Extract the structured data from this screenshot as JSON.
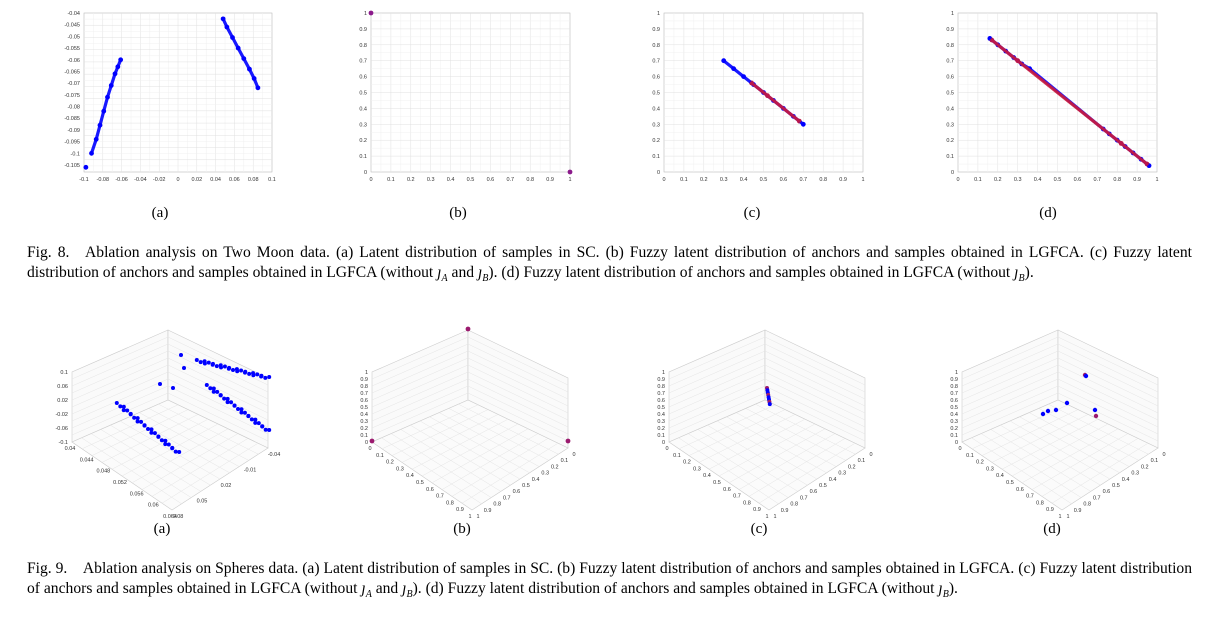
{
  "fig8": {
    "caption_parts": [
      "Fig. 8. Ablation analysis on Two Moon data. (a) Latent distribution of samples in SC. (b) Fuzzy latent distribution of anchors and samples obtained in LGFCA. (c) Fuzzy latent distribution of anchors and samples obtained in LGFCA (without ",
      " and ",
      "). (d) Fuzzy latent distribution of anchors and samples obtained in LGFCA (without ",
      ")."
    ],
    "symbols": {
      "jA": "𝚥",
      "A": "A",
      "B": "B"
    },
    "subfigures": [
      {
        "label": "(a)",
        "chart_data": {
          "type": "scatter",
          "xlim": [
            -0.1,
            0.1
          ],
          "xticks": [
            "-0.1",
            "-0.08",
            "-0.06",
            "-0.04",
            "-0.02",
            "0",
            "0.02",
            "0.04",
            "0.06",
            "0.08",
            "0.1"
          ],
          "ylim": [
            -0.108,
            -0.04
          ],
          "yticks": [
            "-0.04",
            "-0.045",
            "-0.05",
            "-0.055",
            "-0.06",
            "-0.065",
            "-0.07",
            "-0.075",
            "-0.08",
            "-0.085",
            "-0.09",
            "-0.095",
            "-0.1",
            "-0.105"
          ],
          "series": [
            {
              "color": "#0000ff",
              "x": [
                -0.092,
                -0.087,
                -0.083,
                -0.079,
                -0.075,
                -0.071,
                -0.067,
                -0.064,
                -0.061
              ],
              "y": [
                -0.1,
                -0.094,
                -0.088,
                -0.082,
                -0.076,
                -0.071,
                -0.066,
                -0.063,
                -0.06
              ]
            },
            {
              "color": "#0000ff",
              "x": [
                -0.098
              ],
              "y": [
                -0.106
              ]
            },
            {
              "color": "#0000ff",
              "x": [
                0.048,
                0.052,
                0.058,
                0.064,
                0.07,
                0.076,
                0.081,
                0.085
              ],
              "y": [
                -0.0425,
                -0.046,
                -0.0505,
                -0.055,
                -0.0595,
                -0.064,
                -0.068,
                -0.072
              ]
            }
          ]
        }
      },
      {
        "label": "(b)",
        "chart_data": {
          "type": "scatter",
          "xlim": [
            0,
            1
          ],
          "ylim": [
            0,
            1
          ],
          "xticks": [
            "0",
            "0.1",
            "0.2",
            "0.3",
            "0.4",
            "0.5",
            "0.6",
            "0.7",
            "0.8",
            "0.9",
            "1"
          ],
          "yticks": [
            "0",
            "0.1",
            "0.2",
            "0.3",
            "0.4",
            "0.5",
            "0.6",
            "0.7",
            "0.8",
            "0.9",
            "1"
          ],
          "series": [
            {
              "color": "#8b1a8b",
              "x": [
                0,
                1
              ],
              "y": [
                1,
                0
              ]
            }
          ]
        }
      },
      {
        "label": "(c)",
        "chart_data": {
          "type": "scatter",
          "xlim": [
            0,
            1
          ],
          "ylim": [
            0,
            1
          ],
          "xticks": [
            "0",
            "0.1",
            "0.2",
            "0.3",
            "0.4",
            "0.5",
            "0.6",
            "0.7",
            "0.8",
            "0.9",
            "1"
          ],
          "yticks": [
            "0",
            "0.1",
            "0.2",
            "0.3",
            "0.4",
            "0.5",
            "0.6",
            "0.7",
            "0.8",
            "0.9",
            "1"
          ],
          "series": [
            {
              "color": "#0000ff",
              "x": [
                0.3,
                0.35,
                0.4,
                0.45,
                0.5,
                0.55,
                0.6,
                0.65,
                0.7
              ],
              "y": [
                0.7,
                0.65,
                0.6,
                0.55,
                0.5,
                0.45,
                0.4,
                0.35,
                0.3
              ]
            },
            {
              "color": "#cc1a3a",
              "x": [
                0.44,
                0.52,
                0.68
              ],
              "y": [
                0.56,
                0.48,
                0.32
              ]
            }
          ]
        }
      },
      {
        "label": "(d)",
        "chart_data": {
          "type": "scatter",
          "xlim": [
            0,
            1
          ],
          "ylim": [
            0,
            1
          ],
          "xticks": [
            "0",
            "0.1",
            "0.2",
            "0.3",
            "0.4",
            "0.5",
            "0.6",
            "0.7",
            "0.8",
            "0.9",
            "1"
          ],
          "yticks": [
            "0",
            "0.1",
            "0.2",
            "0.3",
            "0.4",
            "0.5",
            "0.6",
            "0.7",
            "0.8",
            "0.9",
            "1"
          ],
          "series": [
            {
              "color": "#0000ff",
              "x": [
                0.16,
                0.2,
                0.24,
                0.28,
                0.32,
                0.36,
                0.73,
                0.76,
                0.8,
                0.84,
                0.88,
                0.92,
                0.96
              ],
              "y": [
                0.84,
                0.8,
                0.76,
                0.72,
                0.68,
                0.65,
                0.27,
                0.24,
                0.2,
                0.16,
                0.12,
                0.08,
                0.04
              ]
            },
            {
              "color": "#cc1a3a",
              "x": [
                0.17,
                0.3,
                0.82,
                0.95
              ],
              "y": [
                0.83,
                0.7,
                0.18,
                0.05
              ]
            }
          ]
        }
      }
    ]
  },
  "fig9": {
    "caption_parts": [
      "Fig. 9. Ablation analysis on Spheres data. (a) Latent distribution of samples in SC. (b) Fuzzy latent distribution of anchors and samples obtained in LGFCA. (c) Fuzzy latent distribution of anchors and samples obtained in LGFCA (without ",
      " and ",
      "). (d) Fuzzy latent distribution of anchors and samples obtained in LGFCA (without ",
      ")."
    ],
    "subfigures": [
      {
        "label": "(a)",
        "chart_data": {
          "type": "scatter3d",
          "zticks": [
            "0.1",
            "0.06",
            "0.02",
            "-0.02",
            "-0.06",
            "-0.1"
          ],
          "xticks": [
            "0.04",
            "0.044",
            "0.048",
            "0.052",
            "0.056",
            "0.06",
            "0.064"
          ],
          "yticks": [
            "0.08",
            "0.05",
            "0.02",
            "-0.01",
            "-0.04"
          ]
        }
      },
      {
        "label": "(b)",
        "chart_data": {
          "type": "scatter3d",
          "zticks": [
            "0",
            "0.1",
            "0.2",
            "0.3",
            "0.4",
            "0.5",
            "0.6",
            "0.7",
            "0.8",
            "0.9",
            "1"
          ],
          "xticks": [
            "0",
            "0.1",
            "0.2",
            "0.3",
            "0.4",
            "0.5",
            "0.6",
            "0.7",
            "0.8",
            "0.9",
            "1"
          ],
          "yticks": [
            "1",
            "0.9",
            "0.8",
            "0.7",
            "0.6",
            "0.5",
            "0.4",
            "0.3",
            "0.2",
            "0.1",
            "0"
          ]
        }
      },
      {
        "label": "(c)",
        "chart_data": {
          "type": "scatter3d",
          "zticks": [
            "0",
            "0.1",
            "0.2",
            "0.3",
            "0.4",
            "0.5",
            "0.6",
            "0.7",
            "0.8",
            "0.9",
            "1"
          ],
          "xticks": [
            "0",
            "0.1",
            "0.2",
            "0.3",
            "0.4",
            "0.5",
            "0.6",
            "0.7",
            "0.8",
            "0.9",
            "1"
          ],
          "yticks": [
            "1",
            "0.9",
            "0.8",
            "0.7",
            "0.6",
            "0.5",
            "0.4",
            "0.3",
            "0.2",
            "0.1",
            "0"
          ]
        }
      },
      {
        "label": "(d)",
        "chart_data": {
          "type": "scatter3d",
          "zticks": [
            "0",
            "0.1",
            "0.2",
            "0.3",
            "0.4",
            "0.5",
            "0.6",
            "0.7",
            "0.8",
            "0.9",
            "1"
          ],
          "xticks": [
            "0",
            "0.1",
            "0.2",
            "0.3",
            "0.4",
            "0.5",
            "0.6",
            "0.7",
            "0.8",
            "0.9",
            "1"
          ],
          "yticks": [
            "1",
            "0.9",
            "0.8",
            "0.7",
            "0.6",
            "0.5",
            "0.4",
            "0.3",
            "0.2",
            "0.1",
            "0"
          ]
        }
      }
    ]
  }
}
